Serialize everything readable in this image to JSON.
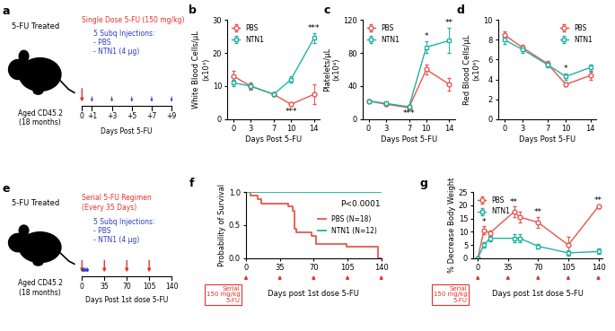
{
  "chart_data": [
    {
      "panel": "b",
      "type": "line",
      "x": [
        0,
        3,
        7,
        10,
        14
      ],
      "xlim": [
        -1,
        15
      ],
      "xticks": [
        0,
        3,
        7,
        10,
        14
      ],
      "xlabel": "Days Post 5-FU",
      "ylim": [
        0,
        30
      ],
      "yticks": [
        0,
        10,
        20,
        30
      ],
      "ylabel": "White Blood Cells/μL\n(x10³)",
      "legend": "upper left",
      "series": [
        {
          "name": "PBS",
          "color": "#e8564c",
          "marker": "circle",
          "values": [
            13,
            10,
            7.5,
            4.5,
            7.5
          ],
          "errors": [
            1.5,
            1,
            0.5,
            0.5,
            3
          ]
        },
        {
          "name": "NTN1",
          "color": "#20b2a4",
          "marker": "square",
          "values": [
            11,
            10,
            7.5,
            12,
            24.5
          ],
          "errors": [
            1,
            0.8,
            0.5,
            1,
            1.5
          ]
        }
      ],
      "annotations": [
        {
          "x": 10,
          "y": 1.0,
          "text": "***"
        },
        {
          "x": 14,
          "y": 26.3,
          "text": "***"
        }
      ]
    },
    {
      "panel": "c",
      "type": "line",
      "x": [
        0,
        3,
        7,
        10,
        14
      ],
      "xlim": [
        -1,
        15
      ],
      "xticks": [
        0,
        3,
        7,
        10,
        14
      ],
      "xlabel": "Days Post 5-FU",
      "ylim": [
        0,
        120
      ],
      "yticks": [
        0,
        40,
        80,
        120
      ],
      "ylabel": "Platelets/μL\n(x10⁴)",
      "legend": "upper left",
      "series": [
        {
          "name": "PBS",
          "color": "#e8564c",
          "marker": "circle",
          "values": [
            22,
            18,
            14,
            60,
            42
          ],
          "errors": [
            2,
            2,
            2,
            6,
            8
          ]
        },
        {
          "name": "NTN1",
          "color": "#20b2a4",
          "marker": "square",
          "values": [
            22,
            19,
            15,
            87,
            95
          ],
          "errors": [
            2,
            2,
            2,
            7,
            15
          ]
        }
      ],
      "annotations": [
        {
          "x": 7,
          "y": 2,
          "text": "***"
        },
        {
          "x": 10,
          "y": 95,
          "text": "*"
        },
        {
          "x": 14,
          "y": 111,
          "text": "**"
        }
      ]
    },
    {
      "panel": "d",
      "type": "line",
      "x": [
        0,
        3,
        7,
        10,
        14
      ],
      "xlim": [
        -1,
        15
      ],
      "xticks": [
        0,
        3,
        7,
        10,
        14
      ],
      "xlabel": "Days Post 5-FU",
      "ylim": [
        0,
        10
      ],
      "yticks": [
        0,
        2,
        4,
        6,
        8,
        10
      ],
      "ylabel": "Red Blood Cells/μL\n(x10⁶)",
      "legend": "upper right",
      "series": [
        {
          "name": "PBS",
          "color": "#e8564c",
          "marker": "circle",
          "values": [
            8.5,
            7.2,
            5.6,
            3.5,
            4.4
          ],
          "errors": [
            0.3,
            0.3,
            0.3,
            0.2,
            0.4
          ]
        },
        {
          "name": "NTN1",
          "color": "#20b2a4",
          "marker": "square",
          "values": [
            8.0,
            7.0,
            5.5,
            4.3,
            5.2
          ],
          "errors": [
            0.4,
            0.3,
            0.3,
            0.3,
            0.3
          ]
        }
      ],
      "annotations": [
        {
          "x": 10,
          "y": 4.7,
          "text": "*"
        }
      ]
    },
    {
      "panel": "f",
      "type": "step",
      "xlim": [
        0,
        140
      ],
      "xticks": [
        0,
        35,
        70,
        105,
        140
      ],
      "xlabel": "Days post 1st dose 5-FU",
      "ylim": [
        0,
        1
      ],
      "yticks": [
        {
          "value": 0,
          "label": "0.0"
        },
        0.5,
        {
          "value": 1,
          "label": "1.0"
        }
      ],
      "ylabel": "Probability of Survival",
      "legend": "center right",
      "series": [
        {
          "name": "PBS (N=18)",
          "color": "#e8564c",
          "x": [
            0,
            5,
            12,
            16,
            44,
            48,
            50,
            52,
            68,
            72,
            104,
            137,
            140
          ],
          "values": [
            1,
            0.94,
            0.89,
            0.83,
            0.78,
            0.72,
            0.44,
            0.39,
            0.33,
            0.22,
            0.17,
            0,
            0
          ]
        },
        {
          "name": "NTN1 (N=12)",
          "color": "#20b2a4",
          "x": [
            0,
            140
          ],
          "values": [
            1,
            1
          ]
        }
      ],
      "annotations": [
        {
          "x": 118,
          "y": 0.76,
          "text": "P<0.0001"
        }
      ],
      "dose_box": "Serial\n150 mg/kg\n5-FU",
      "dose_days": [
        0,
        35,
        70,
        105,
        140
      ]
    },
    {
      "panel": "g",
      "type": "line",
      "x": [
        0,
        7,
        14,
        42,
        49,
        70,
        105,
        140
      ],
      "xlim": [
        -5,
        145
      ],
      "xticks": [
        0,
        35,
        70,
        105,
        140
      ],
      "xlabel": "Days post 1st dose 5-FU",
      "ylim": [
        0,
        25
      ],
      "yticks": [
        0,
        5,
        10,
        15,
        20,
        25
      ],
      "ylabel": "% Decrease Body Weight",
      "legend": "upper left",
      "series": [
        {
          "name": "PBS",
          "color": "#e8564c",
          "marker": "circle",
          "values": [
            0,
            10.5,
            9.5,
            17.5,
            15.5,
            13.5,
            5,
            19.5
          ],
          "errors": [
            0,
            1.5,
            1,
            2,
            2,
            2,
            3,
            0.5
          ]
        },
        {
          "name": "NTN1",
          "color": "#20b2a4",
          "marker": "square",
          "values": [
            0,
            5,
            7.5,
            7.5,
            7.5,
            4.5,
            2,
            2.5
          ],
          "errors": [
            0,
            1,
            1,
            1.5,
            1.5,
            1,
            1,
            1
          ]
        }
      ],
      "annotations": [
        {
          "x": 7,
          "y": 12.2,
          "text": "*"
        },
        {
          "x": 42,
          "y": 19.7,
          "text": "**"
        },
        {
          "x": 70,
          "y": 15.7,
          "text": "**"
        },
        {
          "x": 140,
          "y": 20.2,
          "text": "**"
        }
      ],
      "dose_box": "Serial\n150 mg/kg\n5-FU",
      "dose_days": [
        0,
        35,
        70,
        105,
        140
      ]
    }
  ],
  "schematics": [
    {
      "panel": "a",
      "header": "5-FU Treated",
      "mouse_label": [
        "Aged CD45.2",
        "(18 months)"
      ],
      "regimen": [
        "Single Dose 5-FU (150 mg/kg)"
      ],
      "injections": [
        "5 Subq Injections:",
        "- PBS",
        "- NTN1 (4 μg)"
      ],
      "timeline": {
        "ticks": [
          0,
          {
            "value": 1,
            "label": "+1"
          },
          {
            "value": 3,
            "label": "+3"
          },
          {
            "value": 5,
            "label": "+5"
          },
          {
            "value": 7,
            "label": "+7"
          },
          {
            "value": 9,
            "label": "+9"
          }
        ],
        "xlabel": "Days Post 5-FU"
      },
      "dose_days": [
        0
      ],
      "injection_days": [
        1,
        3,
        5,
        7,
        9
      ]
    },
    {
      "panel": "e",
      "header": "5-FU Treated",
      "mouse_label": [
        "Aged CD45.2",
        "(18 months)"
      ],
      "regimen": [
        "Serial 5-FU Regimen",
        "(Every 35 Days)"
      ],
      "injections": [
        "5 Subq Injections:",
        "- PBS",
        "- NTN1 (4 μg)"
      ],
      "timeline": {
        "ticks": [
          0,
          35,
          70,
          105,
          140
        ],
        "xlabel": "Days Post 1st dose 5-FU"
      },
      "dose_days": [
        0,
        35,
        70,
        105
      ],
      "injection_days": [
        1,
        3,
        5,
        7,
        9
      ]
    }
  ]
}
